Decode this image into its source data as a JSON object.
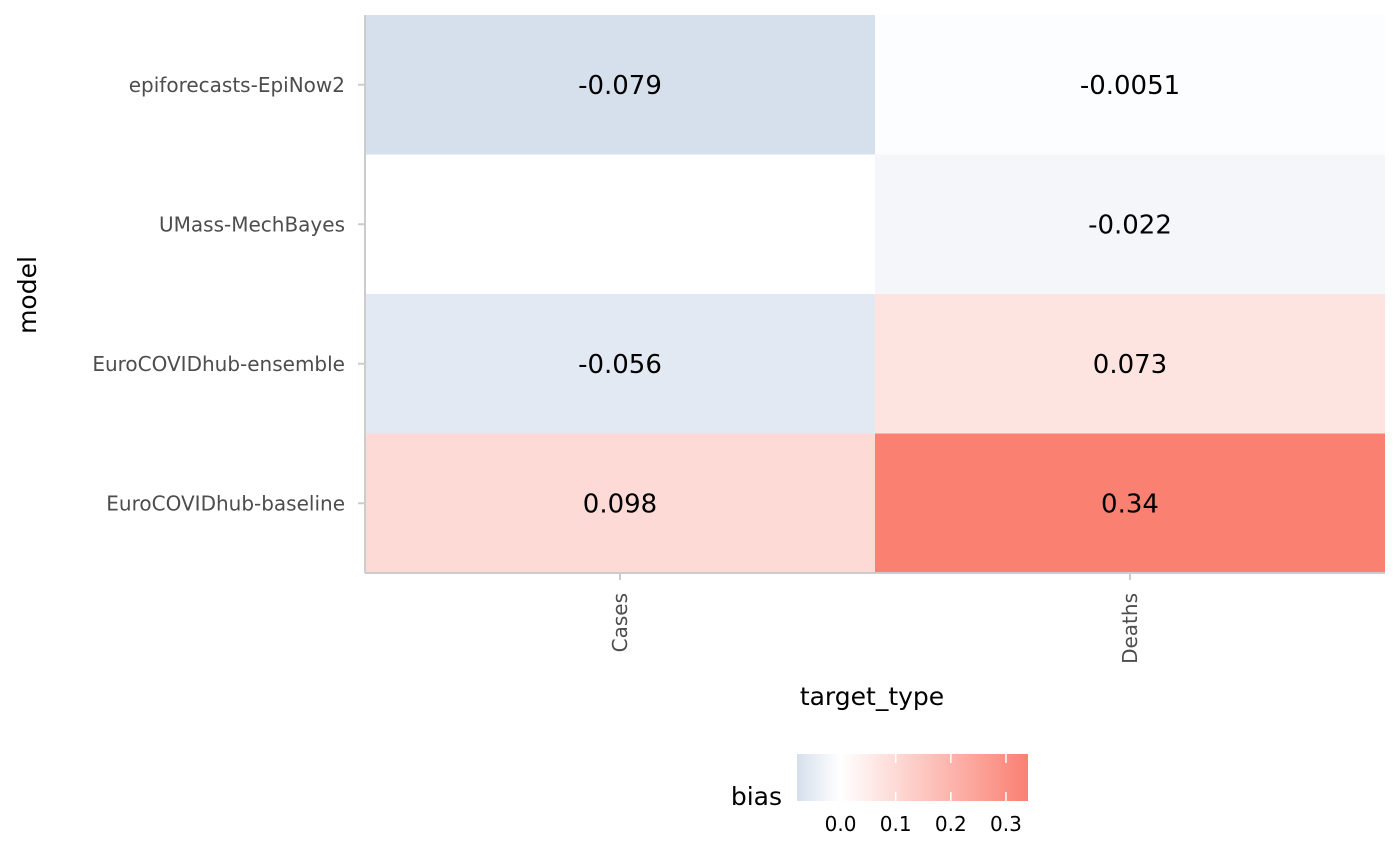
{
  "chart_data": {
    "type": "heatmap",
    "xlabel": "target_type",
    "ylabel": "model",
    "x_categories": [
      "Cases",
      "Deaths"
    ],
    "y_categories": [
      "epiforecasts-EpiNow2",
      "UMass-MechBayes",
      "EuroCOVIDhub-ensemble",
      "EuroCOVIDhub-baseline"
    ],
    "cells": [
      {
        "model": "epiforecasts-EpiNow2",
        "target_type": "Cases",
        "bias": -0.079,
        "label": "-0.079"
      },
      {
        "model": "epiforecasts-EpiNow2",
        "target_type": "Deaths",
        "bias": -0.0051,
        "label": "-0.0051"
      },
      {
        "model": "UMass-MechBayes",
        "target_type": "Deaths",
        "bias": -0.022,
        "label": "-0.022"
      },
      {
        "model": "EuroCOVIDhub-ensemble",
        "target_type": "Cases",
        "bias": -0.056,
        "label": "-0.056"
      },
      {
        "model": "EuroCOVIDhub-ensemble",
        "target_type": "Deaths",
        "bias": 0.073,
        "label": "0.073"
      },
      {
        "model": "EuroCOVIDhub-baseline",
        "target_type": "Cases",
        "bias": 0.098,
        "label": "0.098"
      },
      {
        "model": "EuroCOVIDhub-baseline",
        "target_type": "Deaths",
        "bias": 0.34,
        "label": "0.34"
      }
    ],
    "legend": {
      "title": "bias",
      "position": "bottom",
      "ticks": [
        0.0,
        0.1,
        0.2,
        0.3
      ],
      "tick_labels": [
        "0.0",
        "0.1",
        "0.2",
        "0.3"
      ],
      "range": [
        -0.079,
        0.34
      ]
    },
    "colors": {
      "negative": "#d6e0ec",
      "zero": "#ffffff",
      "positive": "#fa8072",
      "axis": "#cccccc",
      "tick_label": "#4d4d4d"
    },
    "grid": false
  }
}
